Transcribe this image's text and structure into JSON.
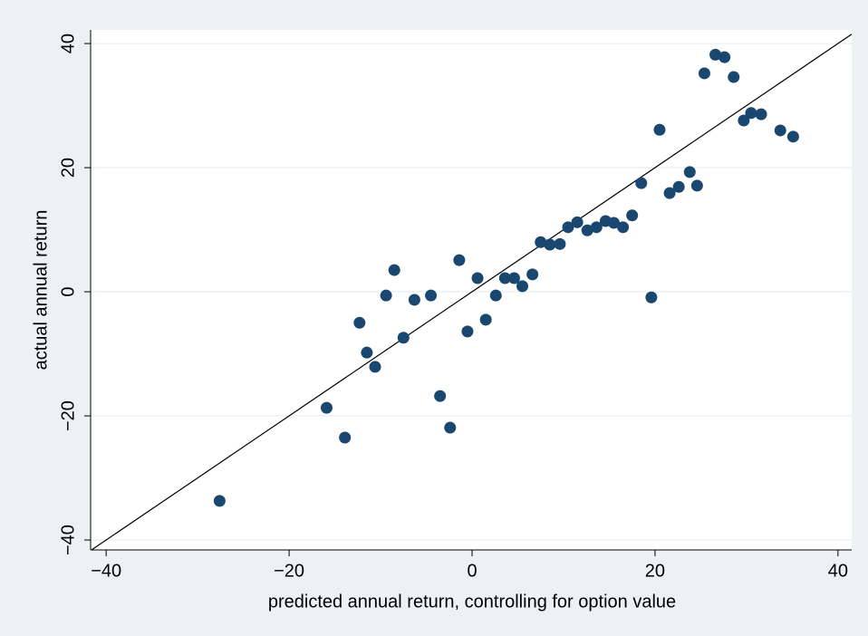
{
  "chart_data": {
    "type": "scatter",
    "xlabel": "predicted annual return, controlling for option value",
    "ylabel": "actual annual return",
    "color": "#1a476f",
    "grid": true,
    "xlim": [
      -41.7,
      41.5
    ],
    "ylim": [
      -41.6,
      42.2
    ],
    "xticks": [
      {
        "value": -40,
        "label": "−40"
      },
      {
        "value": -20,
        "label": "−20"
      },
      0,
      20,
      40
    ],
    "yticks": [
      {
        "value": -40,
        "label": "−40"
      },
      {
        "value": -20,
        "label": "−20"
      },
      0,
      20,
      40
    ],
    "x": [
      -27.6,
      -15.9,
      -13.9,
      -12.3,
      -11.5,
      -10.6,
      -9.4,
      -8.5,
      -7.5,
      -6.3,
      -4.5,
      -3.5,
      -2.4,
      -1.4,
      -0.5,
      0.6,
      1.5,
      2.6,
      3.6,
      4.6,
      5.5,
      6.6,
      7.5,
      8.5,
      9.6,
      10.5,
      11.5,
      12.6,
      13.6,
      14.6,
      15.5,
      16.5,
      17.5,
      18.5,
      19.6,
      20.5,
      21.6,
      22.6,
      23.8,
      24.6,
      25.4,
      26.6,
      27.6,
      28.6,
      29.7,
      30.5,
      31.6,
      33.7,
      35.1
    ],
    "y": [
      -33.7,
      -18.7,
      -23.5,
      -5.0,
      -9.8,
      -12.1,
      -0.6,
      3.5,
      -7.4,
      -1.3,
      -0.6,
      -16.8,
      -21.9,
      5.1,
      -6.4,
      2.2,
      -4.5,
      -0.6,
      2.2,
      2.2,
      0.9,
      2.8,
      8.0,
      7.6,
      7.7,
      10.4,
      11.2,
      9.9,
      10.4,
      11.4,
      11.1,
      10.4,
      12.3,
      17.5,
      -0.9,
      26.1,
      15.9,
      16.9,
      19.3,
      17.1,
      35.2,
      38.2,
      37.8,
      34.6,
      27.6,
      28.8,
      28.6,
      26.0,
      25.0
    ]
  }
}
